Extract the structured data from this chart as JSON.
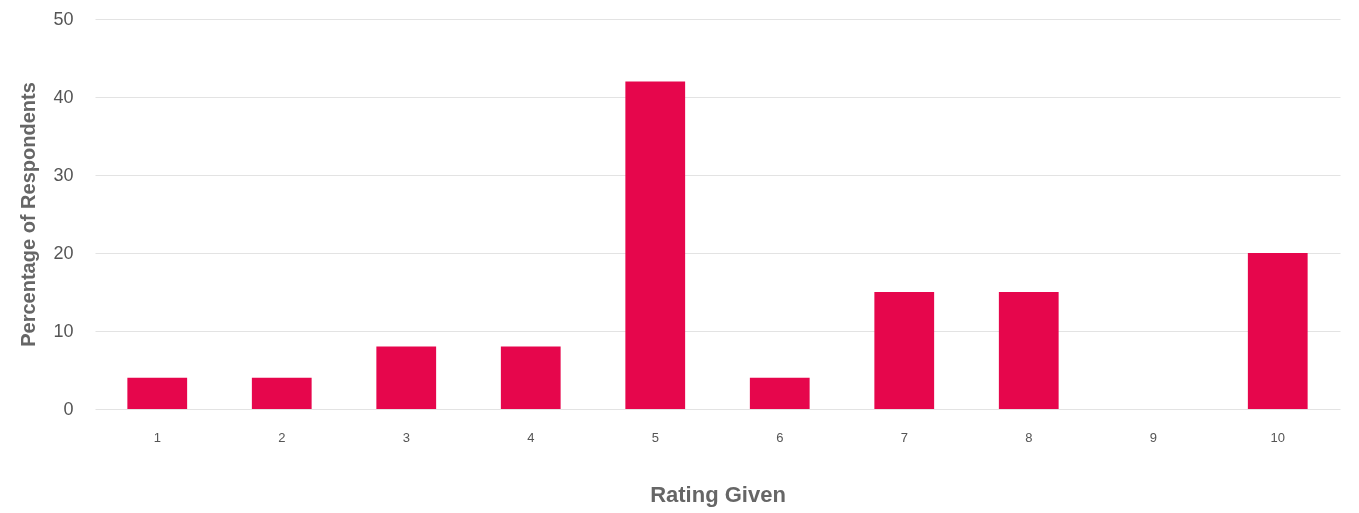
{
  "chart_data": {
    "type": "bar",
    "xlabel": "Rating Given",
    "ylabel": "Percentage of Respondents",
    "categories": [
      "1",
      "2",
      "3",
      "4",
      "5",
      "6",
      "7",
      "8",
      "9",
      "10"
    ],
    "values": [
      4,
      4,
      8,
      8,
      42,
      4,
      15,
      15,
      0,
      20
    ],
    "color": "#e6064c",
    "ylim": [
      0,
      50
    ],
    "yticks": [
      0,
      10,
      20,
      30,
      40,
      50
    ],
    "grid": "y"
  }
}
